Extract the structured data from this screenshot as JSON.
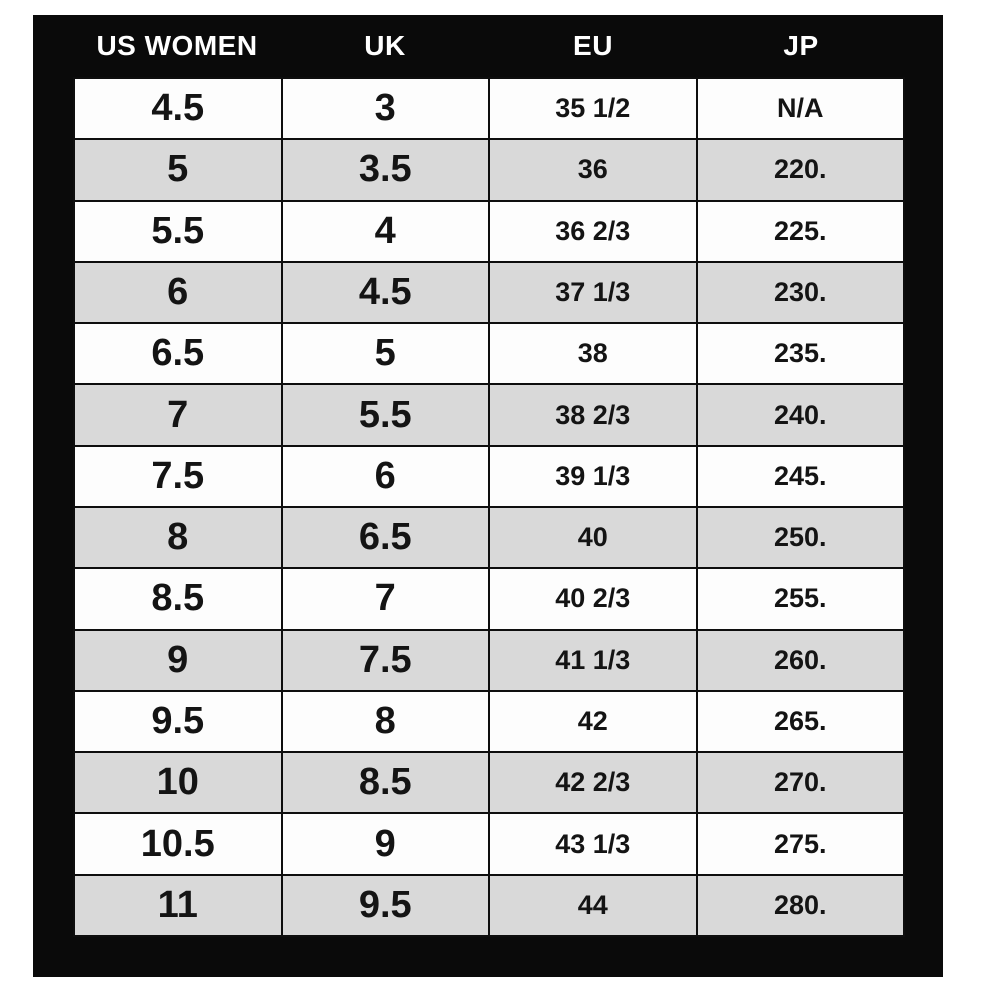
{
  "chart_data": {
    "type": "table",
    "columns": [
      "US WOMEN",
      "UK",
      "EU",
      "JP"
    ],
    "rows": [
      [
        "4.5",
        "3",
        "35 1/2",
        "N/A"
      ],
      [
        "5",
        "3.5",
        "36",
        "220."
      ],
      [
        "5.5",
        "4",
        "36 2/3",
        "225."
      ],
      [
        "6",
        "4.5",
        "37 1/3",
        "230."
      ],
      [
        "6.5",
        "5",
        "38",
        "235."
      ],
      [
        "7",
        "5.5",
        "38 2/3",
        "240."
      ],
      [
        "7.5",
        "6",
        "39 1/3",
        "245."
      ],
      [
        "8",
        "6.5",
        "40",
        "250."
      ],
      [
        "8.5",
        "7",
        "40 2/3",
        "255."
      ],
      [
        "9",
        "7.5",
        "41 1/3",
        "260."
      ],
      [
        "9.5",
        "8",
        "42",
        "265."
      ],
      [
        "10",
        "8.5",
        "42 2/3",
        "270."
      ],
      [
        "10.5",
        "9",
        "43 1/3",
        "275."
      ],
      [
        "11",
        "9.5",
        "44",
        "280."
      ]
    ],
    "layout": {
      "row_striping": "odd rows white, even rows gray",
      "grid": true,
      "header_position": "top, on black frame"
    },
    "colors": {
      "frame": "#0a0a0a",
      "header_text": "#ffffff",
      "row_white": "#fdfdfd",
      "row_gray": "#d9d9d9",
      "cell_text": "#141414",
      "grid_line": "#0e0e0e"
    }
  }
}
